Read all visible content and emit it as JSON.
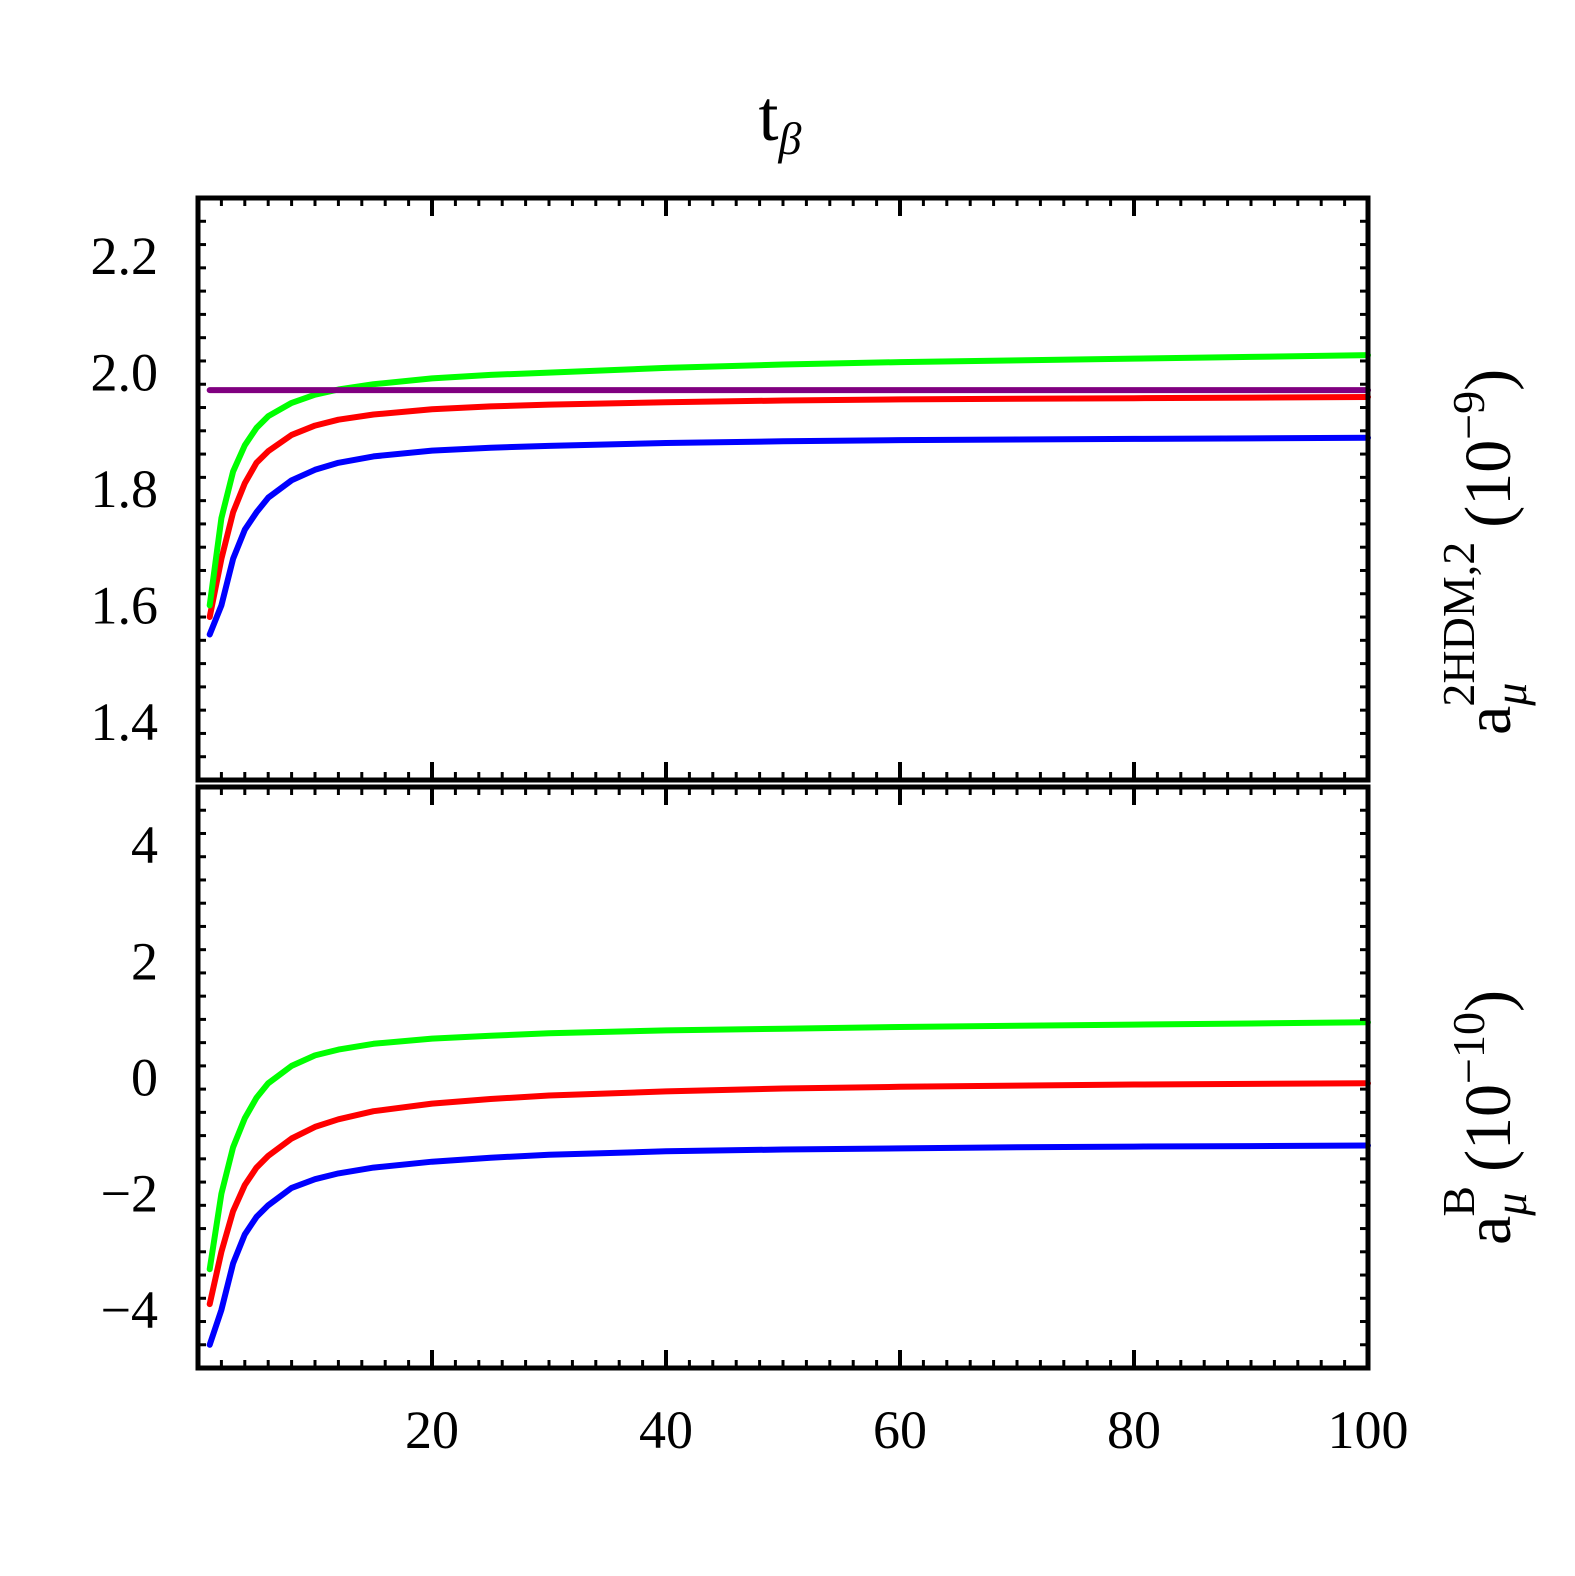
{
  "colors": {
    "blue": "#0000ff",
    "red": "#ff0000",
    "green": "#00ff00",
    "purple": "#800080",
    "frame": "#000000"
  },
  "labels": {
    "title_main": "t",
    "title_sub": "β",
    "top_ylabel_base": "a",
    "top_ylabel_sub": "μ",
    "top_ylabel_sup": "2HDM,2",
    "top_ylabel_unit": "(10",
    "top_ylabel_exp": "−9",
    "top_ylabel_close": ")",
    "bottom_ylabel_base": "a",
    "bottom_ylabel_sub": "μ",
    "bottom_ylabel_sup": "B",
    "bottom_ylabel_unit": "(10",
    "bottom_ylabel_exp": "−10",
    "bottom_ylabel_close": ")"
  },
  "chart_data": [
    {
      "type": "line",
      "panel": "top",
      "title": "tβ",
      "xlabel": "",
      "ylabel": "a_μ^{2HDM,2} (10^−9)",
      "xlim": [
        0,
        100
      ],
      "ylim": [
        1.3,
        2.3
      ],
      "yticks": [
        1.4,
        1.6,
        1.8,
        2.0,
        2.2
      ],
      "ytick_labels": [
        "1.4",
        "1.6",
        "1.8",
        "2.0",
        "2.2"
      ],
      "x": [
        1,
        2,
        3,
        4,
        5,
        6,
        8,
        10,
        12,
        15,
        20,
        25,
        30,
        40,
        50,
        60,
        70,
        80,
        90,
        100
      ],
      "series": [
        {
          "name": "blue",
          "color": "blue",
          "values": [
            1.55,
            1.6,
            1.68,
            1.73,
            1.76,
            1.785,
            1.815,
            1.833,
            1.845,
            1.856,
            1.866,
            1.871,
            1.874,
            1.879,
            1.882,
            1.884,
            1.885,
            1.886,
            1.887,
            1.888
          ]
        },
        {
          "name": "red",
          "color": "red",
          "values": [
            1.58,
            1.68,
            1.76,
            1.81,
            1.845,
            1.865,
            1.893,
            1.909,
            1.919,
            1.928,
            1.937,
            1.942,
            1.945,
            1.949,
            1.952,
            1.954,
            1.955,
            1.956,
            1.957,
            1.958
          ]
        },
        {
          "name": "green",
          "color": "green",
          "values": [
            1.6,
            1.75,
            1.83,
            1.875,
            1.905,
            1.925,
            1.948,
            1.962,
            1.971,
            1.98,
            1.99,
            1.996,
            2.0,
            2.008,
            2.014,
            2.018,
            2.021,
            2.024,
            2.027,
            2.03
          ]
        },
        {
          "name": "purple",
          "color": "purple",
          "values": [
            1.97,
            1.97,
            1.97,
            1.97,
            1.97,
            1.97,
            1.97,
            1.97,
            1.97,
            1.97,
            1.97,
            1.97,
            1.97,
            1.97,
            1.97,
            1.97,
            1.97,
            1.97,
            1.97,
            1.97
          ]
        }
      ]
    },
    {
      "type": "line",
      "panel": "bottom",
      "title": "",
      "xlabel": "",
      "ylabel": "a_μ^{B} (10^−10)",
      "xlim": [
        0,
        100
      ],
      "ylim": [
        -5,
        5
      ],
      "yticks": [
        -4,
        -2,
        0,
        2,
        4
      ],
      "ytick_labels": [
        "−4",
        "−2",
        "0",
        "2",
        "4"
      ],
      "xticks": [
        20,
        40,
        60,
        80,
        100
      ],
      "xtick_labels": [
        "20",
        "40",
        "60",
        "80",
        "100"
      ],
      "x": [
        1,
        2,
        3,
        4,
        5,
        6,
        8,
        10,
        12,
        15,
        20,
        25,
        30,
        40,
        50,
        60,
        70,
        80,
        90,
        100
      ],
      "series": [
        {
          "name": "blue",
          "color": "blue",
          "values": [
            -4.6,
            -4.0,
            -3.2,
            -2.7,
            -2.4,
            -2.2,
            -1.9,
            -1.75,
            -1.65,
            -1.55,
            -1.45,
            -1.38,
            -1.33,
            -1.27,
            -1.24,
            -1.22,
            -1.2,
            -1.19,
            -1.18,
            -1.17
          ]
        },
        {
          "name": "red",
          "color": "red",
          "values": [
            -3.9,
            -3.0,
            -2.3,
            -1.85,
            -1.55,
            -1.35,
            -1.05,
            -0.85,
            -0.72,
            -0.58,
            -0.45,
            -0.37,
            -0.31,
            -0.24,
            -0.19,
            -0.16,
            -0.14,
            -0.12,
            -0.11,
            -0.1
          ]
        },
        {
          "name": "green",
          "color": "green",
          "values": [
            -3.3,
            -2.0,
            -1.2,
            -0.7,
            -0.35,
            -0.1,
            0.2,
            0.38,
            0.48,
            0.58,
            0.67,
            0.72,
            0.76,
            0.81,
            0.84,
            0.87,
            0.89,
            0.91,
            0.93,
            0.95
          ]
        }
      ]
    }
  ]
}
